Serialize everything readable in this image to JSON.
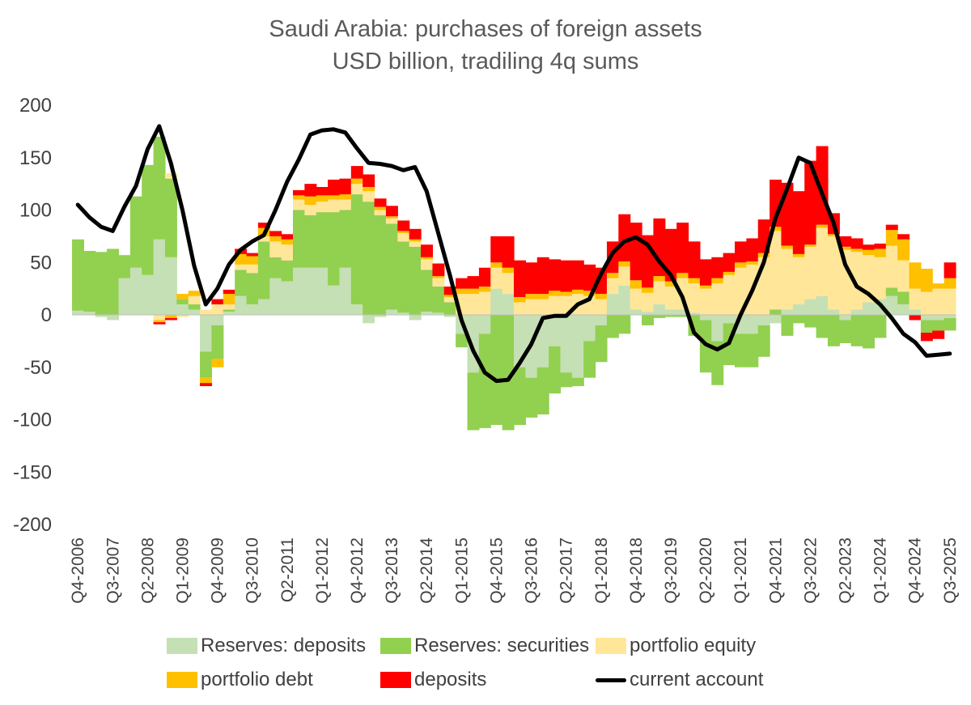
{
  "chart_data": {
    "type": "bar",
    "title": "Saudi Arabia: purchases of foreign assets",
    "subtitle": "USD billion, tradiling 4q sums",
    "xlabel": "",
    "ylabel": "",
    "ylim": [
      -200,
      200
    ],
    "yticks": [
      "200",
      "150",
      "100",
      "50",
      "0",
      "-50",
      "-100",
      "-150",
      "-200"
    ],
    "categories": [
      "Q4-2006",
      "Q1-2007",
      "Q2-2007",
      "Q3-2007",
      "Q4-2007",
      "Q1-2008",
      "Q2-2008",
      "Q3-2008",
      "Q4-2008",
      "Q1-2009",
      "Q2-2009",
      "Q3-2009",
      "Q4-2009",
      "Q1-2010",
      "Q2-2010",
      "Q3-2010",
      "Q4-2010",
      "Q1-2011",
      "Q2-2011",
      "Q3-2011",
      "Q4-2011",
      "Q1-2012",
      "Q2-2012",
      "Q3-2012",
      "Q4-2012",
      "Q1-2013",
      "Q2-2013",
      "Q3-2013",
      "Q4-2013",
      "Q1-2014",
      "Q2-2014",
      "Q3-2014",
      "Q4-2014",
      "Q1-2015",
      "Q2-2015",
      "Q3-2015",
      "Q4-2015",
      "Q1-2016",
      "Q2-2016",
      "Q3-2016",
      "Q4-2016",
      "Q1-2017",
      "Q2-2017",
      "Q3-2017",
      "Q4-2017",
      "Q1-2018",
      "Q2-2018",
      "Q3-2018",
      "Q4-2018",
      "Q1-2019",
      "Q2-2019",
      "Q3-2019",
      "Q4-2019",
      "Q1-2020",
      "Q2-2020",
      "Q3-2020",
      "Q4-2020",
      "Q1-2021",
      "Q2-2021",
      "Q3-2021",
      "Q4-2021",
      "Q1-2022",
      "Q2-2022",
      "Q3-2022",
      "Q4-2022",
      "Q1-2023",
      "Q2-2023",
      "Q3-2023",
      "Q4-2023",
      "Q1-2024",
      "Q2-2024",
      "Q3-2024",
      "Q4-2024",
      "Q1-2025",
      "Q2-2025",
      "Q3-2025"
    ],
    "tick_labels": [
      "Q4-2006",
      "Q3-2007",
      "Q2-2008",
      "Q1-2009",
      "Q4-2009",
      "Q3-2010",
      "Q2-2011",
      "Q1-2012",
      "Q4-2012",
      "Q3-2013",
      "Q2-2014",
      "Q1-2015",
      "Q4-2015",
      "Q3-2016",
      "Q2-2017",
      "Q1-2018",
      "Q4-2018",
      "Q3-2019",
      "Q2-2020",
      "Q1-2021",
      "Q4-2021",
      "Q3-2022",
      "Q2-2023",
      "Q1-2024",
      "Q4-2024",
      "Q3-2025"
    ],
    "series": [
      {
        "name": "Reserves: deposits",
        "color": "#c5e0b4",
        "values": [
          4,
          3,
          -2,
          -5,
          35,
          45,
          38,
          72,
          55,
          10,
          5,
          -35,
          -10,
          3,
          18,
          10,
          15,
          35,
          32,
          45,
          45,
          45,
          28,
          45,
          10,
          -8,
          -2,
          5,
          2,
          -5,
          3,
          2,
          -2,
          -18,
          -55,
          -18,
          25,
          20,
          -50,
          -60,
          -50,
          -30,
          -55,
          -60,
          -25,
          -10,
          20,
          28,
          5,
          3,
          10,
          5,
          5,
          2,
          -5,
          -25,
          -8,
          -18,
          -18,
          -10,
          -8,
          5,
          10,
          15,
          18,
          5,
          -5,
          5,
          12,
          15,
          18,
          10,
          5,
          -5,
          -5,
          -3
        ]
      },
      {
        "name": "Reserves: securities",
        "color": "#92d050",
        "values": [
          68,
          58,
          60,
          63,
          22,
          68,
          105,
          98,
          75,
          5,
          5,
          -25,
          -32,
          2,
          25,
          30,
          55,
          20,
          20,
          55,
          50,
          53,
          70,
          55,
          105,
          108,
          95,
          82,
          68,
          65,
          40,
          25,
          12,
          -13,
          -55,
          -90,
          -105,
          -110,
          -55,
          -38,
          -45,
          -45,
          -14,
          -8,
          -35,
          -35,
          -22,
          -18,
          0,
          -10,
          -3,
          -2,
          -2,
          -20,
          -50,
          -42,
          -40,
          -32,
          -32,
          -30,
          5,
          -20,
          -8,
          -12,
          -22,
          -30,
          -22,
          -30,
          -32,
          -22,
          8,
          12,
          0,
          -12,
          -10,
          -12
        ]
      },
      {
        "name": "portfolio equity",
        "color": "#ffe699",
        "values": [
          0,
          0,
          0,
          0,
          0,
          0,
          0,
          -5,
          5,
          -2,
          8,
          5,
          10,
          5,
          5,
          8,
          5,
          15,
          15,
          10,
          10,
          10,
          12,
          10,
          10,
          10,
          5,
          5,
          8,
          5,
          10,
          8,
          5,
          20,
          20,
          22,
          20,
          20,
          12,
          15,
          15,
          18,
          18,
          20,
          18,
          15,
          15,
          18,
          20,
          18,
          22,
          22,
          30,
          28,
          25,
          30,
          38,
          45,
          48,
          55,
          75,
          58,
          45,
          50,
          65,
          70,
          62,
          55,
          45,
          40,
          40,
          30,
          20,
          22,
          25,
          25
        ]
      },
      {
        "name": "portfolio debt",
        "color": "#ffc000",
        "values": [
          0,
          0,
          0,
          0,
          0,
          0,
          0,
          -2,
          -3,
          5,
          5,
          -5,
          -8,
          10,
          10,
          8,
          8,
          5,
          5,
          4,
          8,
          6,
          4,
          5,
          5,
          4,
          3,
          2,
          2,
          2,
          2,
          2,
          2,
          5,
          5,
          5,
          5,
          5,
          5,
          5,
          5,
          5,
          4,
          4,
          5,
          5,
          5,
          5,
          8,
          5,
          5,
          5,
          5,
          5,
          3,
          5,
          3,
          5,
          3,
          4,
          4,
          3,
          3,
          2,
          3,
          2,
          3,
          3,
          5,
          8,
          15,
          20,
          25,
          22,
          5,
          10
        ]
      },
      {
        "name": "deposits",
        "color": "#ff0000",
        "values": [
          0,
          0,
          0,
          0,
          0,
          0,
          0,
          -2,
          -2,
          0,
          0,
          -3,
          5,
          4,
          5,
          3,
          5,
          5,
          5,
          5,
          12,
          8,
          15,
          15,
          12,
          12,
          8,
          10,
          10,
          10,
          12,
          12,
          8,
          10,
          12,
          18,
          25,
          30,
          35,
          30,
          35,
          30,
          30,
          28,
          25,
          25,
          30,
          45,
          55,
          50,
          55,
          50,
          48,
          35,
          25,
          20,
          18,
          20,
          22,
          32,
          45,
          60,
          60,
          80,
          75,
          20,
          10,
          10,
          5,
          5,
          5,
          5,
          -5,
          -8,
          -8,
          15
        ]
      }
    ],
    "line_series": {
      "name": "current account",
      "color": "#000000",
      "values": [
        105,
        93,
        84,
        80,
        103,
        123,
        158,
        180,
        145,
        100,
        47,
        10,
        25,
        48,
        62,
        70,
        76,
        100,
        127,
        148,
        172,
        176,
        177,
        174,
        159,
        145,
        144,
        142,
        138,
        141,
        118,
        78,
        38,
        -5,
        -34,
        -55,
        -63,
        -62,
        -46,
        -28,
        -3,
        -1,
        -1,
        10,
        15,
        39,
        59,
        70,
        74,
        67,
        51,
        38,
        17,
        -17,
        -28,
        -33,
        -27,
        0,
        23,
        50,
        92,
        120,
        150,
        145,
        116,
        88,
        48,
        27,
        20,
        10,
        -3,
        -18,
        -26,
        -39,
        -38,
        -37
      ]
    },
    "legend": {
      "reserves_deposits": "Reserves: deposits",
      "reserves_securities": "Reserves: securities",
      "portfolio_equity": "portfolio equity",
      "portfolio_debt": "portfolio debt",
      "deposits": "deposits",
      "current_account": "current account"
    },
    "legend_position": "bottom",
    "grid": false
  }
}
